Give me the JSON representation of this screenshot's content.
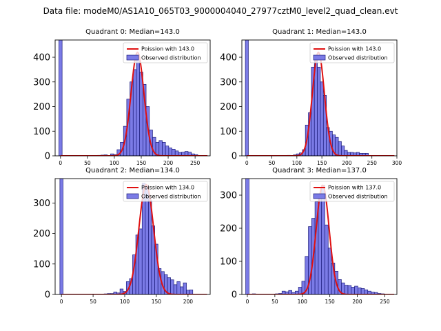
{
  "figure": {
    "title": "Data file: modeM0/AS1A10_065T03_9000004040_27977cztM0_level2_quad_clean.evt"
  },
  "colors": {
    "bar_fill": "#7b7be6",
    "bar_edge": "#1a1a7a",
    "poisson_line": "#e01010",
    "axis": "#000000"
  },
  "chart_data": [
    {
      "type": "bar",
      "title": "Quadrant 0: Median=143.0",
      "median": 143.0,
      "xlim": [
        -10,
        278
      ],
      "ylim": [
        0,
        470
      ],
      "xticks": [
        0,
        50,
        100,
        150,
        200,
        250
      ],
      "yticks": [
        0,
        100,
        200,
        300,
        400
      ],
      "legend": {
        "line": "Poission with 143.0",
        "bars": "Observed distribution",
        "placement": "top-right"
      },
      "bin_width": 6,
      "bars": [
        {
          "x": 0,
          "y": 470
        },
        {
          "x": 72,
          "y": 2
        },
        {
          "x": 78,
          "y": 3
        },
        {
          "x": 84,
          "y": 4
        },
        {
          "x": 96,
          "y": 8
        },
        {
          "x": 102,
          "y": 5
        },
        {
          "x": 108,
          "y": 25
        },
        {
          "x": 114,
          "y": 55
        },
        {
          "x": 120,
          "y": 120
        },
        {
          "x": 126,
          "y": 230
        },
        {
          "x": 132,
          "y": 300
        },
        {
          "x": 138,
          "y": 350
        },
        {
          "x": 144,
          "y": 410
        },
        {
          "x": 150,
          "y": 340
        },
        {
          "x": 156,
          "y": 290
        },
        {
          "x": 162,
          "y": 200
        },
        {
          "x": 168,
          "y": 105
        },
        {
          "x": 174,
          "y": 75
        },
        {
          "x": 180,
          "y": 55
        },
        {
          "x": 186,
          "y": 62
        },
        {
          "x": 192,
          "y": 55
        },
        {
          "x": 198,
          "y": 40
        },
        {
          "x": 204,
          "y": 32
        },
        {
          "x": 210,
          "y": 27
        },
        {
          "x": 216,
          "y": 20
        },
        {
          "x": 222,
          "y": 14
        },
        {
          "x": 228,
          "y": 15
        },
        {
          "x": 234,
          "y": 18
        },
        {
          "x": 240,
          "y": 15
        },
        {
          "x": 246,
          "y": 8
        },
        {
          "x": 252,
          "y": 5
        }
      ],
      "poisson": {
        "mean": 143.0,
        "peak": 420
      }
    },
    {
      "type": "bar",
      "title": "Quadrant 1: Median=143.0",
      "median": 143.0,
      "xlim": [
        -10,
        300
      ],
      "ylim": [
        0,
        470
      ],
      "xticks": [
        0,
        50,
        100,
        150,
        200,
        250,
        300
      ],
      "yticks": [
        0,
        100,
        200,
        300,
        400
      ],
      "legend": {
        "line": "Poission with 143.0",
        "bars": "Observed distribution",
        "placement": "top-right"
      },
      "bin_width": 6,
      "bars": [
        {
          "x": 0,
          "y": 470
        },
        {
          "x": 84,
          "y": 2
        },
        {
          "x": 96,
          "y": 4
        },
        {
          "x": 102,
          "y": 8
        },
        {
          "x": 108,
          "y": 12
        },
        {
          "x": 114,
          "y": 25
        },
        {
          "x": 120,
          "y": 125
        },
        {
          "x": 126,
          "y": 175
        },
        {
          "x": 132,
          "y": 360
        },
        {
          "x": 138,
          "y": 400
        },
        {
          "x": 144,
          "y": 360
        },
        {
          "x": 150,
          "y": 300
        },
        {
          "x": 156,
          "y": 245
        },
        {
          "x": 162,
          "y": 115
        },
        {
          "x": 168,
          "y": 100
        },
        {
          "x": 174,
          "y": 85
        },
        {
          "x": 180,
          "y": 75
        },
        {
          "x": 186,
          "y": 58
        },
        {
          "x": 192,
          "y": 40
        },
        {
          "x": 198,
          "y": 22
        },
        {
          "x": 204,
          "y": 14
        },
        {
          "x": 210,
          "y": 14
        },
        {
          "x": 216,
          "y": 12
        },
        {
          "x": 222,
          "y": 14
        },
        {
          "x": 228,
          "y": 10
        },
        {
          "x": 234,
          "y": 10
        },
        {
          "x": 240,
          "y": 10
        }
      ],
      "poisson": {
        "mean": 143.0,
        "peak": 420
      }
    },
    {
      "type": "bar",
      "title": "Quadrant 2: Median=134.0",
      "median": 134.0,
      "xlim": [
        -10,
        235
      ],
      "ylim": [
        0,
        380
      ],
      "xticks": [
        0,
        50,
        100,
        150,
        200
      ],
      "yticks": [
        0,
        100,
        200,
        300
      ],
      "legend": {
        "line": "Poission with 134.0",
        "bars": "Observed distribution",
        "placement": "top-right"
      },
      "bin_width": 5,
      "bars": [
        {
          "x": 0,
          "y": 380
        },
        {
          "x": 70,
          "y": 2
        },
        {
          "x": 75,
          "y": 3
        },
        {
          "x": 80,
          "y": 3
        },
        {
          "x": 85,
          "y": 8
        },
        {
          "x": 90,
          "y": 5
        },
        {
          "x": 95,
          "y": 18
        },
        {
          "x": 100,
          "y": 10
        },
        {
          "x": 105,
          "y": 42
        },
        {
          "x": 110,
          "y": 52
        },
        {
          "x": 115,
          "y": 130
        },
        {
          "x": 120,
          "y": 195
        },
        {
          "x": 125,
          "y": 215
        },
        {
          "x": 130,
          "y": 365
        },
        {
          "x": 135,
          "y": 355
        },
        {
          "x": 140,
          "y": 310
        },
        {
          "x": 145,
          "y": 225
        },
        {
          "x": 150,
          "y": 165
        },
        {
          "x": 155,
          "y": 85
        },
        {
          "x": 160,
          "y": 75
        },
        {
          "x": 165,
          "y": 65
        },
        {
          "x": 170,
          "y": 55
        },
        {
          "x": 175,
          "y": 48
        },
        {
          "x": 180,
          "y": 32
        },
        {
          "x": 185,
          "y": 42
        },
        {
          "x": 190,
          "y": 25
        },
        {
          "x": 195,
          "y": 38
        },
        {
          "x": 200,
          "y": 14
        },
        {
          "x": 205,
          "y": 15
        }
      ],
      "poisson": {
        "mean": 134.0,
        "peak": 360
      }
    },
    {
      "type": "bar",
      "title": "Quadrant 3: Median=137.0",
      "median": 137.0,
      "xlim": [
        -10,
        272
      ],
      "ylim": [
        0,
        350
      ],
      "xticks": [
        0,
        50,
        100,
        150,
        200,
        250
      ],
      "yticks": [
        0,
        100,
        200,
        300
      ],
      "legend": {
        "line": "Poission with 137.0",
        "bars": "Observed distribution",
        "placement": "top-right"
      },
      "bin_width": 6,
      "bars": [
        {
          "x": 0,
          "y": 350
        },
        {
          "x": 12,
          "y": 2
        },
        {
          "x": 24,
          "y": 1
        },
        {
          "x": 48,
          "y": 1
        },
        {
          "x": 54,
          "y": 2
        },
        {
          "x": 60,
          "y": 3
        },
        {
          "x": 66,
          "y": 10
        },
        {
          "x": 72,
          "y": 8
        },
        {
          "x": 78,
          "y": 12
        },
        {
          "x": 84,
          "y": 6
        },
        {
          "x": 90,
          "y": 10
        },
        {
          "x": 96,
          "y": 22
        },
        {
          "x": 102,
          "y": 40
        },
        {
          "x": 108,
          "y": 115
        },
        {
          "x": 114,
          "y": 205
        },
        {
          "x": 120,
          "y": 230
        },
        {
          "x": 126,
          "y": 280
        },
        {
          "x": 132,
          "y": 290
        },
        {
          "x": 138,
          "y": 330
        },
        {
          "x": 144,
          "y": 210
        },
        {
          "x": 150,
          "y": 140
        },
        {
          "x": 156,
          "y": 95
        },
        {
          "x": 162,
          "y": 70
        },
        {
          "x": 168,
          "y": 45
        },
        {
          "x": 174,
          "y": 35
        },
        {
          "x": 180,
          "y": 28
        },
        {
          "x": 186,
          "y": 27
        },
        {
          "x": 192,
          "y": 22
        },
        {
          "x": 198,
          "y": 25
        },
        {
          "x": 204,
          "y": 20
        },
        {
          "x": 210,
          "y": 18
        },
        {
          "x": 216,
          "y": 14
        },
        {
          "x": 222,
          "y": 10
        },
        {
          "x": 228,
          "y": 7
        },
        {
          "x": 234,
          "y": 6
        },
        {
          "x": 240,
          "y": 3
        },
        {
          "x": 246,
          "y": 2
        }
      ],
      "poisson": {
        "mean": 137.0,
        "peak": 330
      }
    }
  ]
}
